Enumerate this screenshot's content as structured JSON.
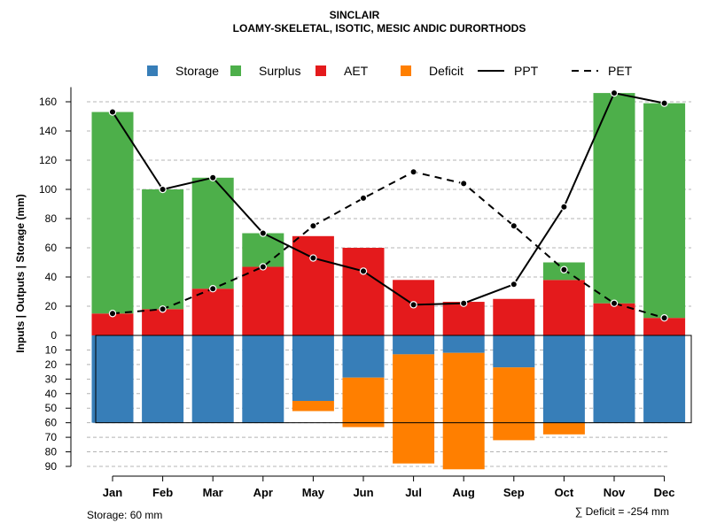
{
  "chart_data": {
    "type": "bar",
    "title": "SINCLAIR",
    "subtitle": "LOAMY-SKELETAL, ISOTIC, MESIC ANDIC DURORTHODS",
    "ylabel": "Inputs | Outputs | Storage    (mm)",
    "categories": [
      "Jan",
      "Feb",
      "Mar",
      "Apr",
      "May",
      "Jun",
      "Jul",
      "Aug",
      "Sep",
      "Oct",
      "Nov",
      "Dec"
    ],
    "ylim_top": [
      0,
      170
    ],
    "ylim_bottom": [
      0,
      90
    ],
    "yticks_top": [
      "0",
      "20",
      "40",
      "60",
      "80",
      "100",
      "120",
      "140",
      "160"
    ],
    "yticks_bottom": [
      "10",
      "20",
      "30",
      "40",
      "50",
      "60",
      "70",
      "80",
      "90"
    ],
    "legend": [
      {
        "label": "Storage",
        "color": "#377eb8",
        "kind": "box"
      },
      {
        "label": "Surplus",
        "color": "#4daf4a",
        "kind": "box"
      },
      {
        "label": "AET",
        "color": "#e41a1c",
        "kind": "box"
      },
      {
        "label": "Deficit",
        "color": "#ff7f00",
        "kind": "box"
      },
      {
        "label": "PPT",
        "color": "#000000",
        "kind": "solid"
      },
      {
        "label": "PET",
        "color": "#000000",
        "kind": "dashed"
      }
    ],
    "series": {
      "AET": [
        15,
        18,
        32,
        47,
        68,
        60,
        38,
        23,
        25,
        38,
        22,
        12
      ],
      "Surplus": [
        138,
        82,
        76,
        23,
        0,
        0,
        0,
        0,
        0,
        12,
        144,
        147
      ],
      "Storage": [
        60,
        60,
        60,
        60,
        45,
        29,
        13,
        12,
        22,
        60,
        60,
        60
      ],
      "Deficit": [
        0,
        0,
        0,
        0,
        7,
        34,
        75,
        80,
        50,
        8,
        0,
        0
      ],
      "PPT": [
        153,
        100,
        108,
        70,
        53,
        44,
        21,
        22,
        35,
        88,
        166,
        159
      ],
      "PET": [
        15,
        18,
        32,
        47,
        75,
        94,
        112,
        104,
        75,
        45,
        22,
        12
      ]
    },
    "storage_capacity": 60,
    "footer_left": "Storage: 60 mm",
    "footer_right": "∑ Deficit = -254 mm"
  }
}
